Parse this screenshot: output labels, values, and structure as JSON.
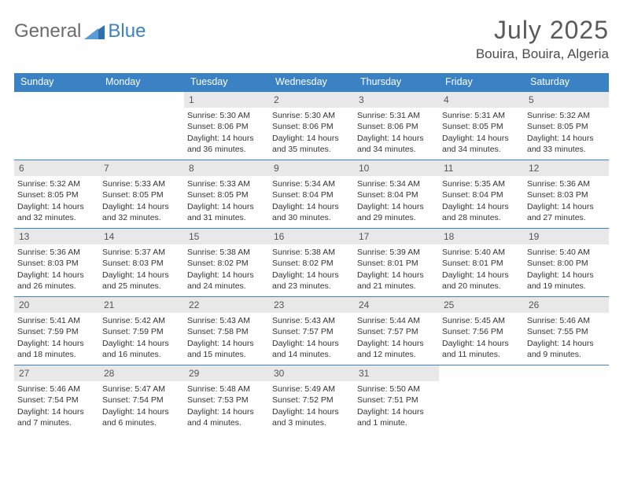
{
  "brand": {
    "part1": "General",
    "part2": "Blue"
  },
  "title": "July 2025",
  "location": "Bouira, Bouira, Algeria",
  "colors": {
    "header_bg": "#3b82c4",
    "header_text": "#ffffff",
    "daynum_bg": "#e8e8e8",
    "daynum_text": "#555555",
    "border": "#3b82c4",
    "body_text": "#333333",
    "logo_gray": "#6b6b6b",
    "logo_blue": "#3b82c4"
  },
  "typography": {
    "title_fontsize": 32,
    "location_fontsize": 17,
    "dow_fontsize": 12.5,
    "daynum_fontsize": 12,
    "body_fontsize": 10.5
  },
  "days_of_week": [
    "Sunday",
    "Monday",
    "Tuesday",
    "Wednesday",
    "Thursday",
    "Friday",
    "Saturday"
  ],
  "weeks": [
    [
      {
        "blank": true
      },
      {
        "blank": true
      },
      {
        "num": "1",
        "sunrise": "Sunrise: 5:30 AM",
        "sunset": "Sunset: 8:06 PM",
        "daylight": "Daylight: 14 hours and 36 minutes."
      },
      {
        "num": "2",
        "sunrise": "Sunrise: 5:30 AM",
        "sunset": "Sunset: 8:06 PM",
        "daylight": "Daylight: 14 hours and 35 minutes."
      },
      {
        "num": "3",
        "sunrise": "Sunrise: 5:31 AM",
        "sunset": "Sunset: 8:06 PM",
        "daylight": "Daylight: 14 hours and 34 minutes."
      },
      {
        "num": "4",
        "sunrise": "Sunrise: 5:31 AM",
        "sunset": "Sunset: 8:05 PM",
        "daylight": "Daylight: 14 hours and 34 minutes."
      },
      {
        "num": "5",
        "sunrise": "Sunrise: 5:32 AM",
        "sunset": "Sunset: 8:05 PM",
        "daylight": "Daylight: 14 hours and 33 minutes."
      }
    ],
    [
      {
        "num": "6",
        "sunrise": "Sunrise: 5:32 AM",
        "sunset": "Sunset: 8:05 PM",
        "daylight": "Daylight: 14 hours and 32 minutes."
      },
      {
        "num": "7",
        "sunrise": "Sunrise: 5:33 AM",
        "sunset": "Sunset: 8:05 PM",
        "daylight": "Daylight: 14 hours and 32 minutes."
      },
      {
        "num": "8",
        "sunrise": "Sunrise: 5:33 AM",
        "sunset": "Sunset: 8:05 PM",
        "daylight": "Daylight: 14 hours and 31 minutes."
      },
      {
        "num": "9",
        "sunrise": "Sunrise: 5:34 AM",
        "sunset": "Sunset: 8:04 PM",
        "daylight": "Daylight: 14 hours and 30 minutes."
      },
      {
        "num": "10",
        "sunrise": "Sunrise: 5:34 AM",
        "sunset": "Sunset: 8:04 PM",
        "daylight": "Daylight: 14 hours and 29 minutes."
      },
      {
        "num": "11",
        "sunrise": "Sunrise: 5:35 AM",
        "sunset": "Sunset: 8:04 PM",
        "daylight": "Daylight: 14 hours and 28 minutes."
      },
      {
        "num": "12",
        "sunrise": "Sunrise: 5:36 AM",
        "sunset": "Sunset: 8:03 PM",
        "daylight": "Daylight: 14 hours and 27 minutes."
      }
    ],
    [
      {
        "num": "13",
        "sunrise": "Sunrise: 5:36 AM",
        "sunset": "Sunset: 8:03 PM",
        "daylight": "Daylight: 14 hours and 26 minutes."
      },
      {
        "num": "14",
        "sunrise": "Sunrise: 5:37 AM",
        "sunset": "Sunset: 8:03 PM",
        "daylight": "Daylight: 14 hours and 25 minutes."
      },
      {
        "num": "15",
        "sunrise": "Sunrise: 5:38 AM",
        "sunset": "Sunset: 8:02 PM",
        "daylight": "Daylight: 14 hours and 24 minutes."
      },
      {
        "num": "16",
        "sunrise": "Sunrise: 5:38 AM",
        "sunset": "Sunset: 8:02 PM",
        "daylight": "Daylight: 14 hours and 23 minutes."
      },
      {
        "num": "17",
        "sunrise": "Sunrise: 5:39 AM",
        "sunset": "Sunset: 8:01 PM",
        "daylight": "Daylight: 14 hours and 21 minutes."
      },
      {
        "num": "18",
        "sunrise": "Sunrise: 5:40 AM",
        "sunset": "Sunset: 8:01 PM",
        "daylight": "Daylight: 14 hours and 20 minutes."
      },
      {
        "num": "19",
        "sunrise": "Sunrise: 5:40 AM",
        "sunset": "Sunset: 8:00 PM",
        "daylight": "Daylight: 14 hours and 19 minutes."
      }
    ],
    [
      {
        "num": "20",
        "sunrise": "Sunrise: 5:41 AM",
        "sunset": "Sunset: 7:59 PM",
        "daylight": "Daylight: 14 hours and 18 minutes."
      },
      {
        "num": "21",
        "sunrise": "Sunrise: 5:42 AM",
        "sunset": "Sunset: 7:59 PM",
        "daylight": "Daylight: 14 hours and 16 minutes."
      },
      {
        "num": "22",
        "sunrise": "Sunrise: 5:43 AM",
        "sunset": "Sunset: 7:58 PM",
        "daylight": "Daylight: 14 hours and 15 minutes."
      },
      {
        "num": "23",
        "sunrise": "Sunrise: 5:43 AM",
        "sunset": "Sunset: 7:57 PM",
        "daylight": "Daylight: 14 hours and 14 minutes."
      },
      {
        "num": "24",
        "sunrise": "Sunrise: 5:44 AM",
        "sunset": "Sunset: 7:57 PM",
        "daylight": "Daylight: 14 hours and 12 minutes."
      },
      {
        "num": "25",
        "sunrise": "Sunrise: 5:45 AM",
        "sunset": "Sunset: 7:56 PM",
        "daylight": "Daylight: 14 hours and 11 minutes."
      },
      {
        "num": "26",
        "sunrise": "Sunrise: 5:46 AM",
        "sunset": "Sunset: 7:55 PM",
        "daylight": "Daylight: 14 hours and 9 minutes."
      }
    ],
    [
      {
        "num": "27",
        "sunrise": "Sunrise: 5:46 AM",
        "sunset": "Sunset: 7:54 PM",
        "daylight": "Daylight: 14 hours and 7 minutes."
      },
      {
        "num": "28",
        "sunrise": "Sunrise: 5:47 AM",
        "sunset": "Sunset: 7:54 PM",
        "daylight": "Daylight: 14 hours and 6 minutes."
      },
      {
        "num": "29",
        "sunrise": "Sunrise: 5:48 AM",
        "sunset": "Sunset: 7:53 PM",
        "daylight": "Daylight: 14 hours and 4 minutes."
      },
      {
        "num": "30",
        "sunrise": "Sunrise: 5:49 AM",
        "sunset": "Sunset: 7:52 PM",
        "daylight": "Daylight: 14 hours and 3 minutes."
      },
      {
        "num": "31",
        "sunrise": "Sunrise: 5:50 AM",
        "sunset": "Sunset: 7:51 PM",
        "daylight": "Daylight: 14 hours and 1 minute."
      },
      {
        "blank": true
      },
      {
        "blank": true
      }
    ]
  ]
}
